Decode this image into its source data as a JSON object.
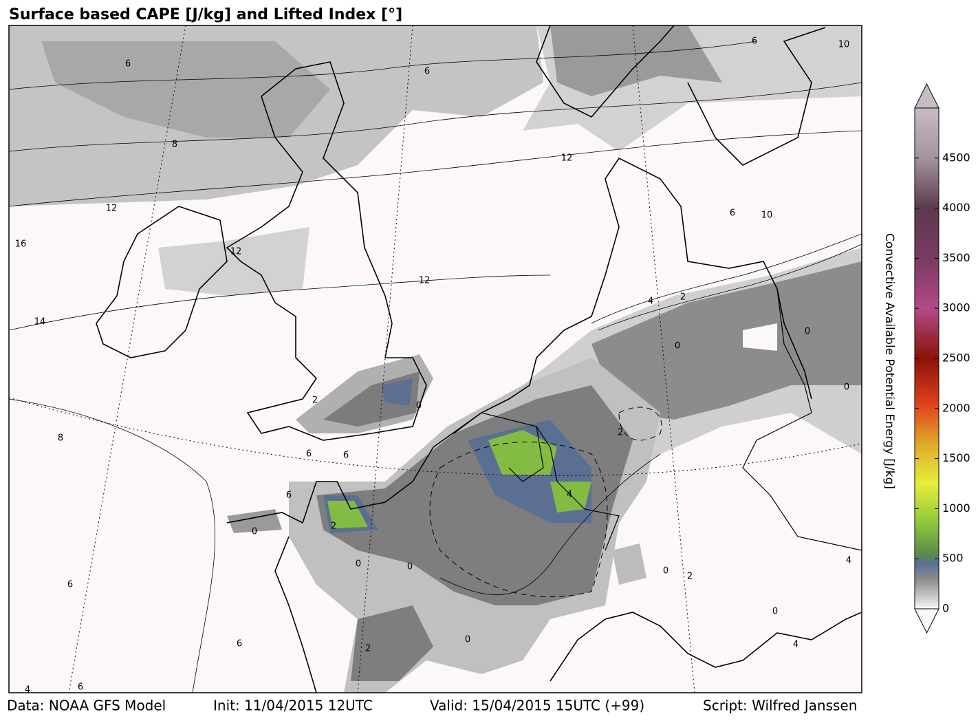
{
  "title": "Surface based CAPE [J/kg] and Lifted Index [°]",
  "colorbar": {
    "label": "Convective Available Potential Energy [J/kg]",
    "lim": [
      0,
      5000
    ],
    "ticks": [
      0,
      500,
      1000,
      1500,
      2000,
      2500,
      3000,
      3500,
      4000,
      4500
    ]
  },
  "contour_labels": [
    6,
    6,
    8,
    12,
    12,
    16,
    12,
    14,
    12,
    8,
    2,
    0,
    6,
    6,
    6,
    0,
    0,
    0,
    6,
    0,
    2,
    6,
    6,
    4,
    4,
    2,
    0,
    0,
    0,
    2,
    0,
    2,
    4,
    0,
    4,
    10,
    6,
    2,
    4,
    6,
    10
  ],
  "footer": [
    "Data: NOAA GFS Model",
    "Init: 11/04/2015 12UTC",
    "Valid: 15/04/2015 15UTC (+99)",
    "Script: Wilfred Janssen"
  ]
}
